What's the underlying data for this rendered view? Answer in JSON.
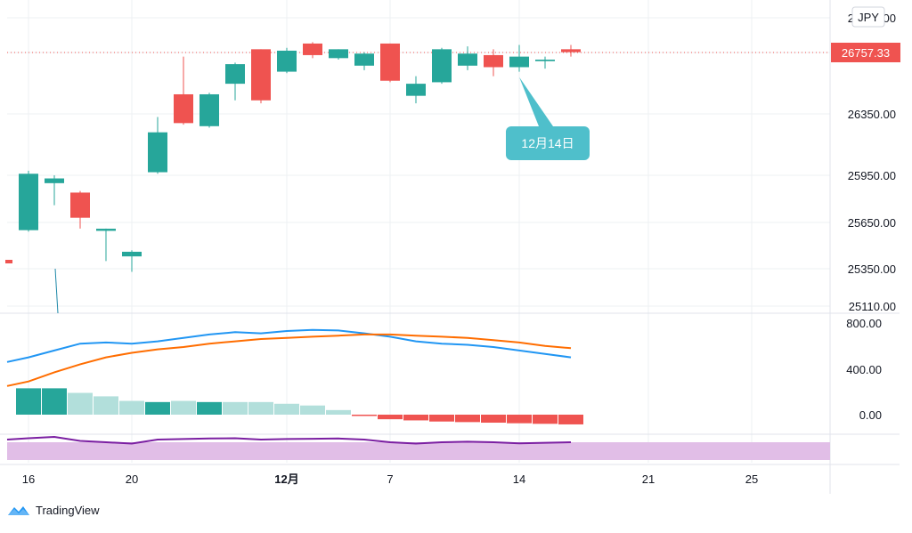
{
  "chart_data": {
    "type": "candlestick",
    "currency_badge": "JPY",
    "last_price_label": "26757.33",
    "x_tick_labels": [
      {
        "index": 0,
        "label": "16"
      },
      {
        "index": 4,
        "label": "20"
      },
      {
        "index": 10,
        "label": "12月"
      },
      {
        "index": 14,
        "label": "7"
      },
      {
        "index": 19,
        "label": "14"
      },
      {
        "index": 24,
        "label": "21"
      },
      {
        "index": 28,
        "label": "25"
      }
    ],
    "price_axis": {
      "ticks": [
        "25110.00",
        "25350.00",
        "25650.00",
        "25950.00",
        "26350.00",
        "26757.33"
      ],
      "top_label": "27000.00"
    },
    "candles": [
      {
        "o": 25600,
        "h": 25980,
        "l": 25590,
        "c": 25960
      },
      {
        "o": 25900,
        "h": 25950,
        "l": 25760,
        "c": 25930
      },
      {
        "o": 25840,
        "h": 25850,
        "l": 25610,
        "c": 25680
      },
      {
        "o": 25600,
        "h": 25610,
        "l": 25400,
        "c": 25605
      },
      {
        "o": 25430,
        "h": 25470,
        "l": 25330,
        "c": 25460
      },
      {
        "o": 25970,
        "h": 26330,
        "l": 25960,
        "c": 26230
      },
      {
        "o": 26480,
        "h": 26730,
        "l": 26280,
        "c": 26290
      },
      {
        "o": 26270,
        "h": 26490,
        "l": 26260,
        "c": 26480
      },
      {
        "o": 26550,
        "h": 26690,
        "l": 26440,
        "c": 26680
      },
      {
        "o": 26780,
        "h": 26780,
        "l": 26420,
        "c": 26440
      },
      {
        "o": 26630,
        "h": 26790,
        "l": 26620,
        "c": 26770
      },
      {
        "o": 26820,
        "h": 26830,
        "l": 26720,
        "c": 26740
      },
      {
        "o": 26720,
        "h": 26780,
        "l": 26710,
        "c": 26780
      },
      {
        "o": 26670,
        "h": 26760,
        "l": 26640,
        "c": 26750
      },
      {
        "o": 26820,
        "h": 26820,
        "l": 26560,
        "c": 26570
      },
      {
        "o": 26470,
        "h": 26600,
        "l": 26420,
        "c": 26550
      },
      {
        "o": 26560,
        "h": 26790,
        "l": 26550,
        "c": 26780
      },
      {
        "o": 26670,
        "h": 26800,
        "l": 26640,
        "c": 26750
      },
      {
        "o": 26740,
        "h": 26780,
        "l": 26600,
        "c": 26660
      },
      {
        "o": 26660,
        "h": 26810,
        "l": 26630,
        "c": 26730
      },
      {
        "o": 26700,
        "h": 26730,
        "l": 26650,
        "c": 26710
      },
      {
        "o": 26780,
        "h": 26810,
        "l": 26730,
        "c": 26760
      }
    ],
    "partial_left_candle": {
      "price": 25350,
      "direction": "down"
    },
    "annotation": {
      "label": "12月14日",
      "candle_index": 19
    },
    "macd": {
      "axis_labels": [
        "800.00",
        "400.00",
        "0.00"
      ],
      "macd_line": [
        500,
        560,
        620,
        630,
        620,
        640,
        670,
        700,
        720,
        710,
        730,
        740,
        735,
        710,
        680,
        640,
        620,
        610,
        590,
        560,
        530,
        500
      ],
      "signal_line": [
        290,
        370,
        440,
        500,
        540,
        570,
        590,
        620,
        640,
        660,
        670,
        680,
        690,
        700,
        700,
        690,
        680,
        670,
        650,
        630,
        600,
        580
      ],
      "histogram": [
        230,
        230,
        190,
        160,
        120,
        110,
        120,
        110,
        110,
        110,
        95,
        80,
        40,
        -5,
        -40,
        -50,
        -60,
        -65,
        -70,
        -75,
        -80,
        -85
      ],
      "histogram_strong": [
        true,
        true,
        false,
        false,
        false,
        true,
        false,
        true,
        false,
        false,
        false,
        false,
        false,
        true,
        true,
        true,
        true,
        true,
        true,
        true,
        true,
        true
      ]
    },
    "oscillator": {
      "line": [
        0.85,
        0.9,
        0.75,
        0.7,
        0.65,
        0.8,
        0.82,
        0.84,
        0.85,
        0.8,
        0.82,
        0.83,
        0.84,
        0.8,
        0.7,
        0.65,
        0.7,
        0.72,
        0.7,
        0.66,
        0.68,
        0.7
      ]
    },
    "grid": true
  },
  "brand": {
    "name": "TradingView"
  },
  "colors": {
    "up": "#26a69a",
    "down": "#ef5350",
    "hist_up_light": "#b2dfdb",
    "hist_down": "#ef5350",
    "macd": "#2196f3",
    "signal": "#ff6d00",
    "osc_line": "#7b1fa2",
    "osc_band": "#e1bee7",
    "annotation": "#4fbfcb",
    "grid": "#eef0f3",
    "axis_text": "#131722",
    "last_price_bg": "#ef5350"
  }
}
